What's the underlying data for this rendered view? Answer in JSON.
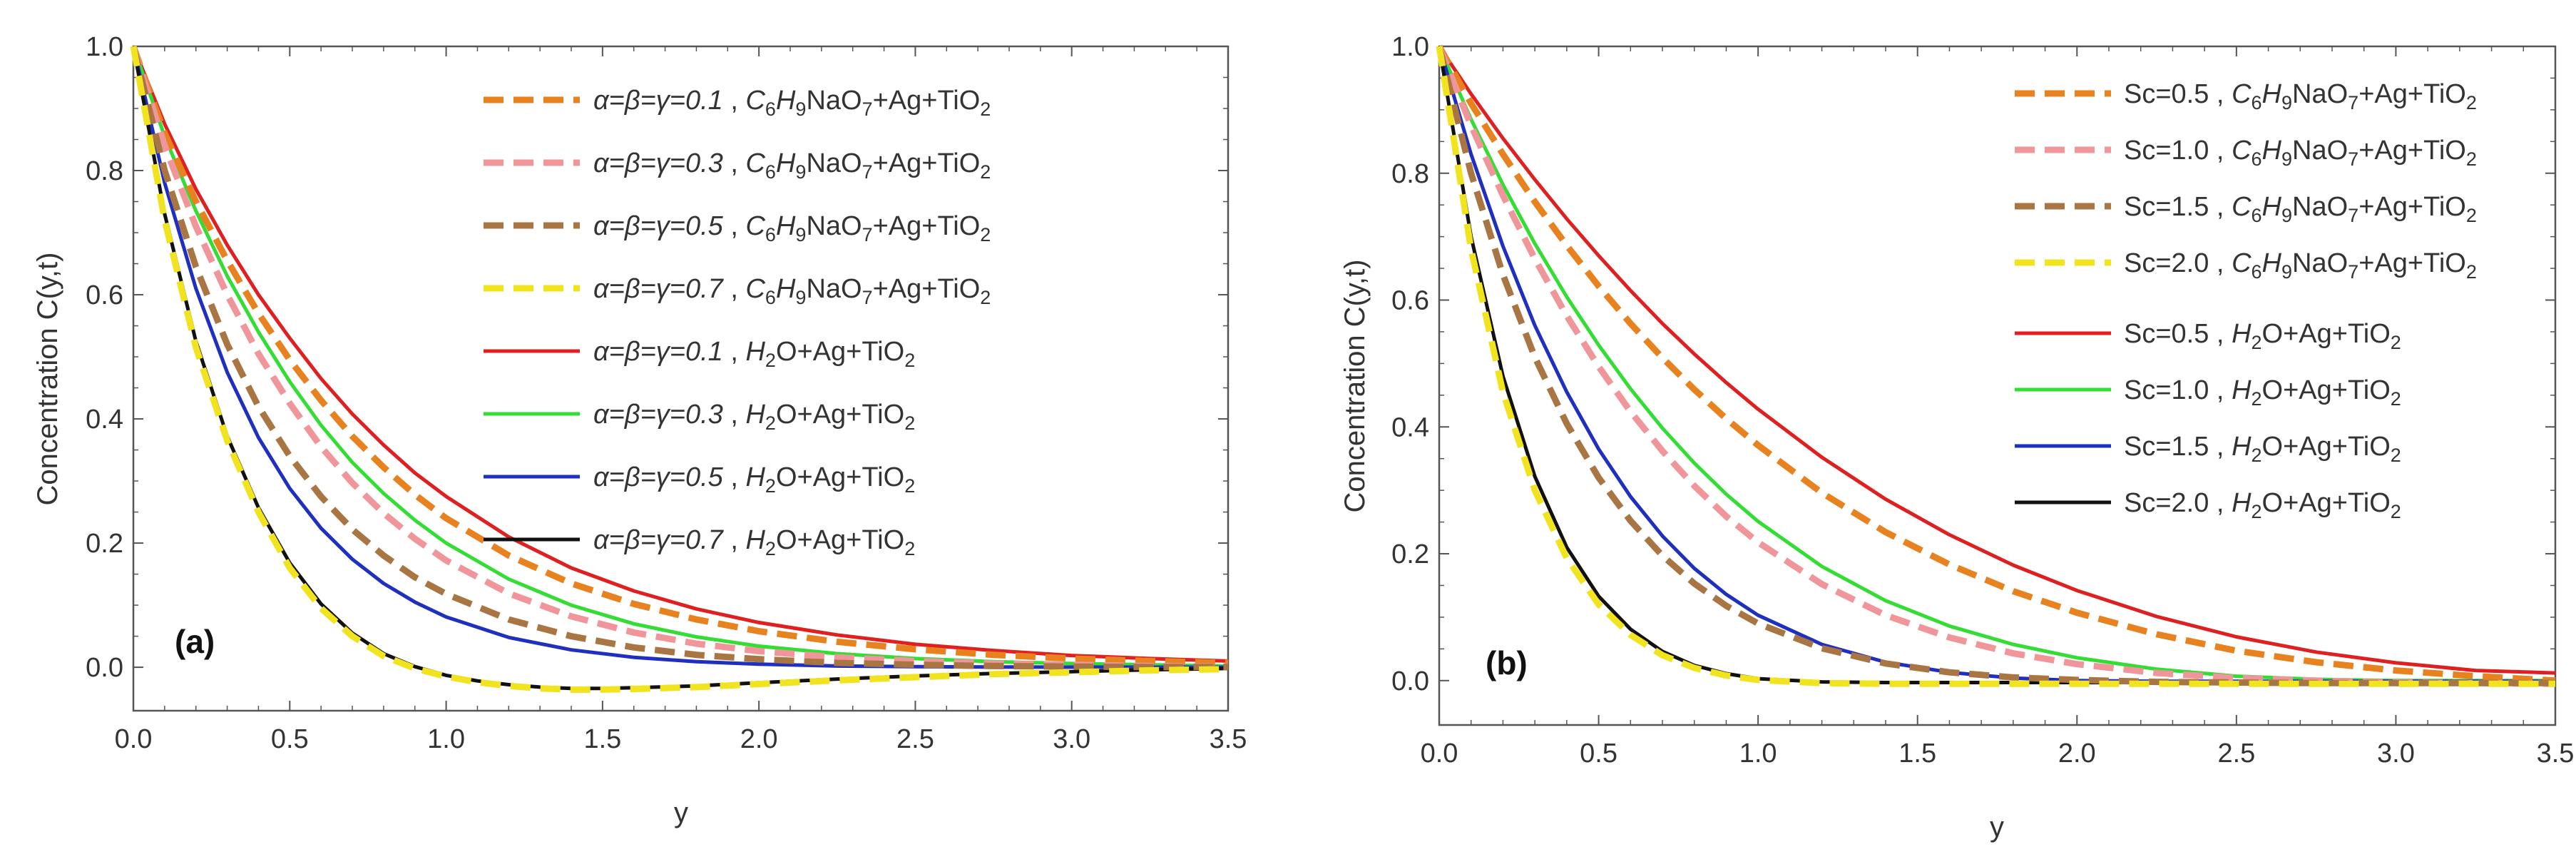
{
  "chart_data": [
    {
      "type": "line",
      "panel_label": "(a)",
      "xlabel": "y",
      "ylabel": "Concentration C(y,t)",
      "xlim": [
        0,
        3.5
      ],
      "ylim": [
        -0.07,
        1.0
      ],
      "xticks": [
        "0.0",
        "0.5",
        "1.0",
        "1.5",
        "2.0",
        "2.5",
        "3.0",
        "3.5"
      ],
      "yticks": [
        "0.0",
        "0.2",
        "0.4",
        "0.6",
        "0.8",
        "1.0"
      ],
      "legend_position": "top-right",
      "series": [
        {
          "name": "α=β=γ=0.1 , C6H9NaO7+Ag+TiO2",
          "param": "α=β=γ=0.1",
          "fluid": "citrate",
          "color": "#E8821E",
          "dash": true,
          "x": [
            0,
            0.1,
            0.2,
            0.3,
            0.4,
            0.5,
            0.6,
            0.7,
            0.8,
            0.9,
            1.0,
            1.2,
            1.4,
            1.6,
            1.8,
            2.0,
            2.25,
            2.5,
            2.75,
            3.0,
            3.25,
            3.5
          ],
          "y": [
            1.0,
            0.86,
            0.75,
            0.655,
            0.57,
            0.495,
            0.43,
            0.372,
            0.322,
            0.278,
            0.24,
            0.18,
            0.135,
            0.102,
            0.077,
            0.058,
            0.041,
            0.029,
            0.02,
            0.014,
            0.01,
            0.007
          ]
        },
        {
          "name": "α=β=γ=0.3 , C6H9NaO7+Ag+TiO2",
          "param": "α=β=γ=0.3",
          "fluid": "citrate",
          "color": "#F0959A",
          "dash": true,
          "x": [
            0,
            0.1,
            0.2,
            0.3,
            0.4,
            0.5,
            0.6,
            0.7,
            0.8,
            0.9,
            1.0,
            1.2,
            1.4,
            1.6,
            1.8,
            2.0,
            2.25,
            2.5,
            2.75,
            3.0,
            3.25,
            3.5
          ],
          "y": [
            1.0,
            0.84,
            0.71,
            0.6,
            0.505,
            0.425,
            0.355,
            0.297,
            0.248,
            0.207,
            0.172,
            0.119,
            0.082,
            0.056,
            0.038,
            0.026,
            0.016,
            0.01,
            0.006,
            0.004,
            0.002,
            0.001
          ]
        },
        {
          "name": "α=β=γ=0.5 , C6H9NaO7+Ag+TiO2",
          "param": "α=β=γ=0.5",
          "fluid": "citrate",
          "color": "#A87543",
          "dash": true,
          "x": [
            0,
            0.1,
            0.2,
            0.3,
            0.4,
            0.5,
            0.6,
            0.7,
            0.8,
            0.9,
            1.0,
            1.2,
            1.4,
            1.6,
            1.8,
            2.0,
            2.25,
            2.5,
            2.75,
            3.0,
            3.25,
            3.5
          ],
          "y": [
            1.0,
            0.8,
            0.645,
            0.52,
            0.42,
            0.34,
            0.275,
            0.222,
            0.18,
            0.145,
            0.118,
            0.077,
            0.05,
            0.032,
            0.02,
            0.013,
            0.007,
            0.004,
            0.002,
            0.001,
            0.0005,
            0.0003
          ]
        },
        {
          "name": "α=β=γ=0.7 , C6H9NaO7+Ag+TiO2",
          "param": "α=β=γ=0.7",
          "fluid": "citrate",
          "color": "#F2E31F",
          "dash": true,
          "x": [
            0,
            0.1,
            0.2,
            0.3,
            0.4,
            0.5,
            0.6,
            0.7,
            0.8,
            0.9,
            1.0,
            1.1,
            1.2,
            1.3,
            1.4,
            1.5,
            1.6,
            1.8,
            2.0,
            2.25,
            2.5,
            2.75,
            3.0,
            3.25,
            3.5
          ],
          "y": [
            1.0,
            0.72,
            0.515,
            0.365,
            0.25,
            0.16,
            0.095,
            0.05,
            0.018,
            -0.002,
            -0.015,
            -0.024,
            -0.03,
            -0.034,
            -0.036,
            -0.036,
            -0.035,
            -0.032,
            -0.027,
            -0.021,
            -0.016,
            -0.011,
            -0.008,
            -0.005,
            -0.003
          ]
        },
        {
          "name": "α=β=γ=0.1 , H2O+Ag+TiO2",
          "param": "α=β=γ=0.1",
          "fluid": "water",
          "color": "#E02020",
          "dash": false,
          "x": [
            0,
            0.1,
            0.2,
            0.3,
            0.4,
            0.5,
            0.6,
            0.7,
            0.8,
            0.9,
            1.0,
            1.2,
            1.4,
            1.6,
            1.8,
            2.0,
            2.25,
            2.5,
            2.75,
            3.0,
            3.25,
            3.5
          ],
          "y": [
            1.0,
            0.875,
            0.77,
            0.68,
            0.6,
            0.53,
            0.465,
            0.408,
            0.358,
            0.313,
            0.275,
            0.21,
            0.16,
            0.123,
            0.094,
            0.072,
            0.052,
            0.037,
            0.027,
            0.019,
            0.014,
            0.01
          ]
        },
        {
          "name": "α=β=γ=0.3 , H2O+Ag+TiO2",
          "param": "α=β=γ=0.3",
          "fluid": "water",
          "color": "#33DD33",
          "dash": false,
          "x": [
            0,
            0.1,
            0.2,
            0.3,
            0.4,
            0.5,
            0.6,
            0.7,
            0.8,
            0.9,
            1.0,
            1.2,
            1.4,
            1.6,
            1.8,
            2.0,
            2.25,
            2.5,
            2.75,
            3.0,
            3.25,
            3.5
          ],
          "y": [
            1.0,
            0.855,
            0.735,
            0.63,
            0.54,
            0.46,
            0.39,
            0.33,
            0.28,
            0.237,
            0.2,
            0.142,
            0.1,
            0.07,
            0.049,
            0.034,
            0.022,
            0.014,
            0.009,
            0.006,
            0.004,
            0.002
          ]
        },
        {
          "name": "α=β=γ=0.5 , H2O+Ag+TiO2",
          "param": "α=β=γ=0.5",
          "fluid": "water",
          "color": "#1F2FC0",
          "dash": false,
          "x": [
            0,
            0.1,
            0.2,
            0.3,
            0.4,
            0.5,
            0.6,
            0.7,
            0.8,
            0.9,
            1.0,
            1.2,
            1.4,
            1.6,
            1.8,
            2.0,
            2.25,
            2.5,
            2.75,
            3.0,
            3.25,
            3.5
          ],
          "y": [
            1.0,
            0.78,
            0.61,
            0.475,
            0.37,
            0.288,
            0.224,
            0.174,
            0.135,
            0.105,
            0.081,
            0.048,
            0.028,
            0.016,
            0.009,
            0.005,
            0.002,
            0.001,
            0.0005,
            0.0002,
            0.0001,
            0.0
          ]
        },
        {
          "name": "α=β=γ=0.7 , H2O+Ag+TiO2",
          "param": "α=β=γ=0.7",
          "fluid": "water",
          "color": "#111111",
          "dash": false,
          "x": [
            0,
            0.1,
            0.2,
            0.3,
            0.4,
            0.5,
            0.6,
            0.7,
            0.8,
            0.9,
            1.0,
            1.1,
            1.2,
            1.3,
            1.4,
            1.5,
            1.6,
            1.8,
            2.0,
            2.25,
            2.5,
            2.75,
            3.0,
            3.25,
            3.5
          ],
          "y": [
            1.0,
            0.73,
            0.525,
            0.372,
            0.257,
            0.168,
            0.102,
            0.055,
            0.022,
            0.001,
            -0.013,
            -0.022,
            -0.028,
            -0.032,
            -0.034,
            -0.034,
            -0.033,
            -0.03,
            -0.025,
            -0.019,
            -0.014,
            -0.01,
            -0.007,
            -0.004,
            -0.002
          ]
        }
      ]
    },
    {
      "type": "line",
      "panel_label": "(b)",
      "xlabel": "y",
      "ylabel": "Concentration C(y,t)",
      "xlim": [
        0,
        3.5
      ],
      "ylim": [
        -0.07,
        1.0
      ],
      "xticks": [
        "0.0",
        "0.5",
        "1.0",
        "1.5",
        "2.0",
        "2.5",
        "3.0",
        "3.5"
      ],
      "yticks": [
        "0.0",
        "0.2",
        "0.4",
        "0.6",
        "0.8",
        "1.0"
      ],
      "legend_position": "top-right",
      "series": [
        {
          "name": "Sc=0.5 , C6H9NaO7+Ag+TiO2",
          "param": "Sc=0.5",
          "fluid": "citrate",
          "color": "#E8821E",
          "dash": true,
          "x": [
            0,
            0.1,
            0.2,
            0.3,
            0.4,
            0.5,
            0.6,
            0.7,
            0.8,
            0.9,
            1.0,
            1.2,
            1.4,
            1.6,
            1.8,
            2.0,
            2.25,
            2.5,
            2.75,
            3.0,
            3.25,
            3.5
          ],
          "y": [
            1.0,
            0.91,
            0.83,
            0.755,
            0.686,
            0.622,
            0.563,
            0.509,
            0.459,
            0.413,
            0.371,
            0.296,
            0.234,
            0.183,
            0.141,
            0.107,
            0.073,
            0.047,
            0.029,
            0.016,
            0.007,
            0.0
          ]
        },
        {
          "name": "Sc=1.0 , C6H9NaO7+Ag+TiO2",
          "param": "Sc=1.0",
          "fluid": "citrate",
          "color": "#F0959A",
          "dash": true,
          "x": [
            0,
            0.1,
            0.2,
            0.3,
            0.4,
            0.5,
            0.6,
            0.7,
            0.8,
            0.9,
            1.0,
            1.2,
            1.4,
            1.6,
            1.8,
            2.0,
            2.25,
            2.5,
            2.75,
            3.0,
            3.25,
            3.5
          ],
          "y": [
            1.0,
            0.875,
            0.765,
            0.665,
            0.575,
            0.495,
            0.424,
            0.362,
            0.307,
            0.259,
            0.218,
            0.152,
            0.103,
            0.068,
            0.043,
            0.026,
            0.012,
            0.004,
            0.0,
            -0.003,
            -0.004,
            -0.005
          ]
        },
        {
          "name": "Sc=1.5 , C6H9NaO7+Ag+TiO2",
          "param": "Sc=1.5",
          "fluid": "citrate",
          "color": "#A87543",
          "dash": true,
          "x": [
            0,
            0.1,
            0.2,
            0.3,
            0.4,
            0.5,
            0.6,
            0.7,
            0.8,
            0.9,
            1.0,
            1.2,
            1.4,
            1.6,
            1.8,
            2.0,
            2.25,
            2.5,
            2.75,
            3.0,
            3.25,
            3.5
          ],
          "y": [
            1.0,
            0.8,
            0.64,
            0.51,
            0.405,
            0.32,
            0.252,
            0.197,
            0.153,
            0.118,
            0.09,
            0.051,
            0.027,
            0.013,
            0.005,
            0.001,
            -0.002,
            -0.003,
            -0.004,
            -0.004,
            -0.004,
            -0.004
          ]
        },
        {
          "name": "Sc=2.0 , C6H9NaO7+Ag+TiO2",
          "param": "Sc=2.0",
          "fluid": "citrate",
          "color": "#F2E31F",
          "dash": true,
          "x": [
            0,
            0.1,
            0.2,
            0.3,
            0.4,
            0.5,
            0.6,
            0.7,
            0.8,
            0.9,
            1.0,
            1.2,
            1.4,
            1.6,
            1.8,
            2.0,
            2.25,
            2.5,
            2.75,
            3.0,
            3.25,
            3.5
          ],
          "y": [
            1.0,
            0.68,
            0.455,
            0.3,
            0.193,
            0.12,
            0.072,
            0.04,
            0.02,
            0.008,
            0.001,
            -0.004,
            -0.005,
            -0.005,
            -0.005,
            -0.005,
            -0.005,
            -0.005,
            -0.005,
            -0.005,
            -0.005,
            -0.005
          ]
        },
        {
          "name": "Sc=0.5 , H2O+Ag+TiO2",
          "param": "Sc=0.5",
          "fluid": "water",
          "color": "#E02020",
          "dash": false,
          "x": [
            0,
            0.1,
            0.2,
            0.3,
            0.4,
            0.5,
            0.6,
            0.7,
            0.8,
            0.9,
            1.0,
            1.2,
            1.4,
            1.6,
            1.8,
            2.0,
            2.25,
            2.5,
            2.75,
            3.0,
            3.25,
            3.5
          ],
          "y": [
            1.0,
            0.925,
            0.855,
            0.79,
            0.728,
            0.67,
            0.615,
            0.563,
            0.515,
            0.47,
            0.428,
            0.352,
            0.286,
            0.23,
            0.182,
            0.142,
            0.101,
            0.069,
            0.045,
            0.028,
            0.016,
            0.012
          ]
        },
        {
          "name": "Sc=1.0 , H2O+Ag+TiO2",
          "param": "Sc=1.0",
          "fluid": "water",
          "color": "#33DD33",
          "dash": false,
          "x": [
            0,
            0.1,
            0.2,
            0.3,
            0.4,
            0.5,
            0.6,
            0.7,
            0.8,
            0.9,
            1.0,
            1.2,
            1.4,
            1.6,
            1.8,
            2.0,
            2.25,
            2.5,
            2.75,
            3.0,
            3.25,
            3.5
          ],
          "y": [
            1.0,
            0.885,
            0.782,
            0.689,
            0.605,
            0.529,
            0.46,
            0.398,
            0.343,
            0.294,
            0.251,
            0.18,
            0.126,
            0.086,
            0.057,
            0.036,
            0.018,
            0.007,
            0.002,
            0.0,
            0.0,
            0.0
          ]
        },
        {
          "name": "Sc=1.5 , H2O+Ag+TiO2",
          "param": "Sc=1.5",
          "fluid": "water",
          "color": "#1F2FC0",
          "dash": false,
          "x": [
            0,
            0.1,
            0.2,
            0.3,
            0.4,
            0.5,
            0.6,
            0.7,
            0.8,
            0.9,
            1.0,
            1.2,
            1.4,
            1.6,
            1.8,
            2.0,
            2.25,
            2.5,
            2.75,
            3.0,
            3.25,
            3.5
          ],
          "y": [
            1.0,
            0.83,
            0.685,
            0.56,
            0.455,
            0.365,
            0.29,
            0.228,
            0.177,
            0.136,
            0.103,
            0.057,
            0.029,
            0.013,
            0.004,
            0.0,
            -0.001,
            -0.001,
            -0.001,
            -0.001,
            -0.001,
            -0.001
          ]
        },
        {
          "name": "Sc=2.0 , H2O+Ag+TiO2",
          "param": "Sc=2.0",
          "fluid": "water",
          "color": "#111111",
          "dash": false,
          "x": [
            0,
            0.1,
            0.2,
            0.3,
            0.4,
            0.5,
            0.6,
            0.7,
            0.8,
            0.9,
            1.0,
            1.2,
            1.4,
            1.6,
            1.8,
            2.0,
            2.25,
            2.5,
            2.75,
            3.0,
            3.25,
            3.5
          ],
          "y": [
            1.0,
            0.7,
            0.48,
            0.322,
            0.21,
            0.133,
            0.081,
            0.046,
            0.024,
            0.011,
            0.003,
            -0.002,
            -0.003,
            -0.003,
            -0.003,
            -0.003,
            -0.003,
            -0.003,
            -0.003,
            -0.003,
            -0.003,
            -0.003
          ]
        }
      ]
    }
  ]
}
